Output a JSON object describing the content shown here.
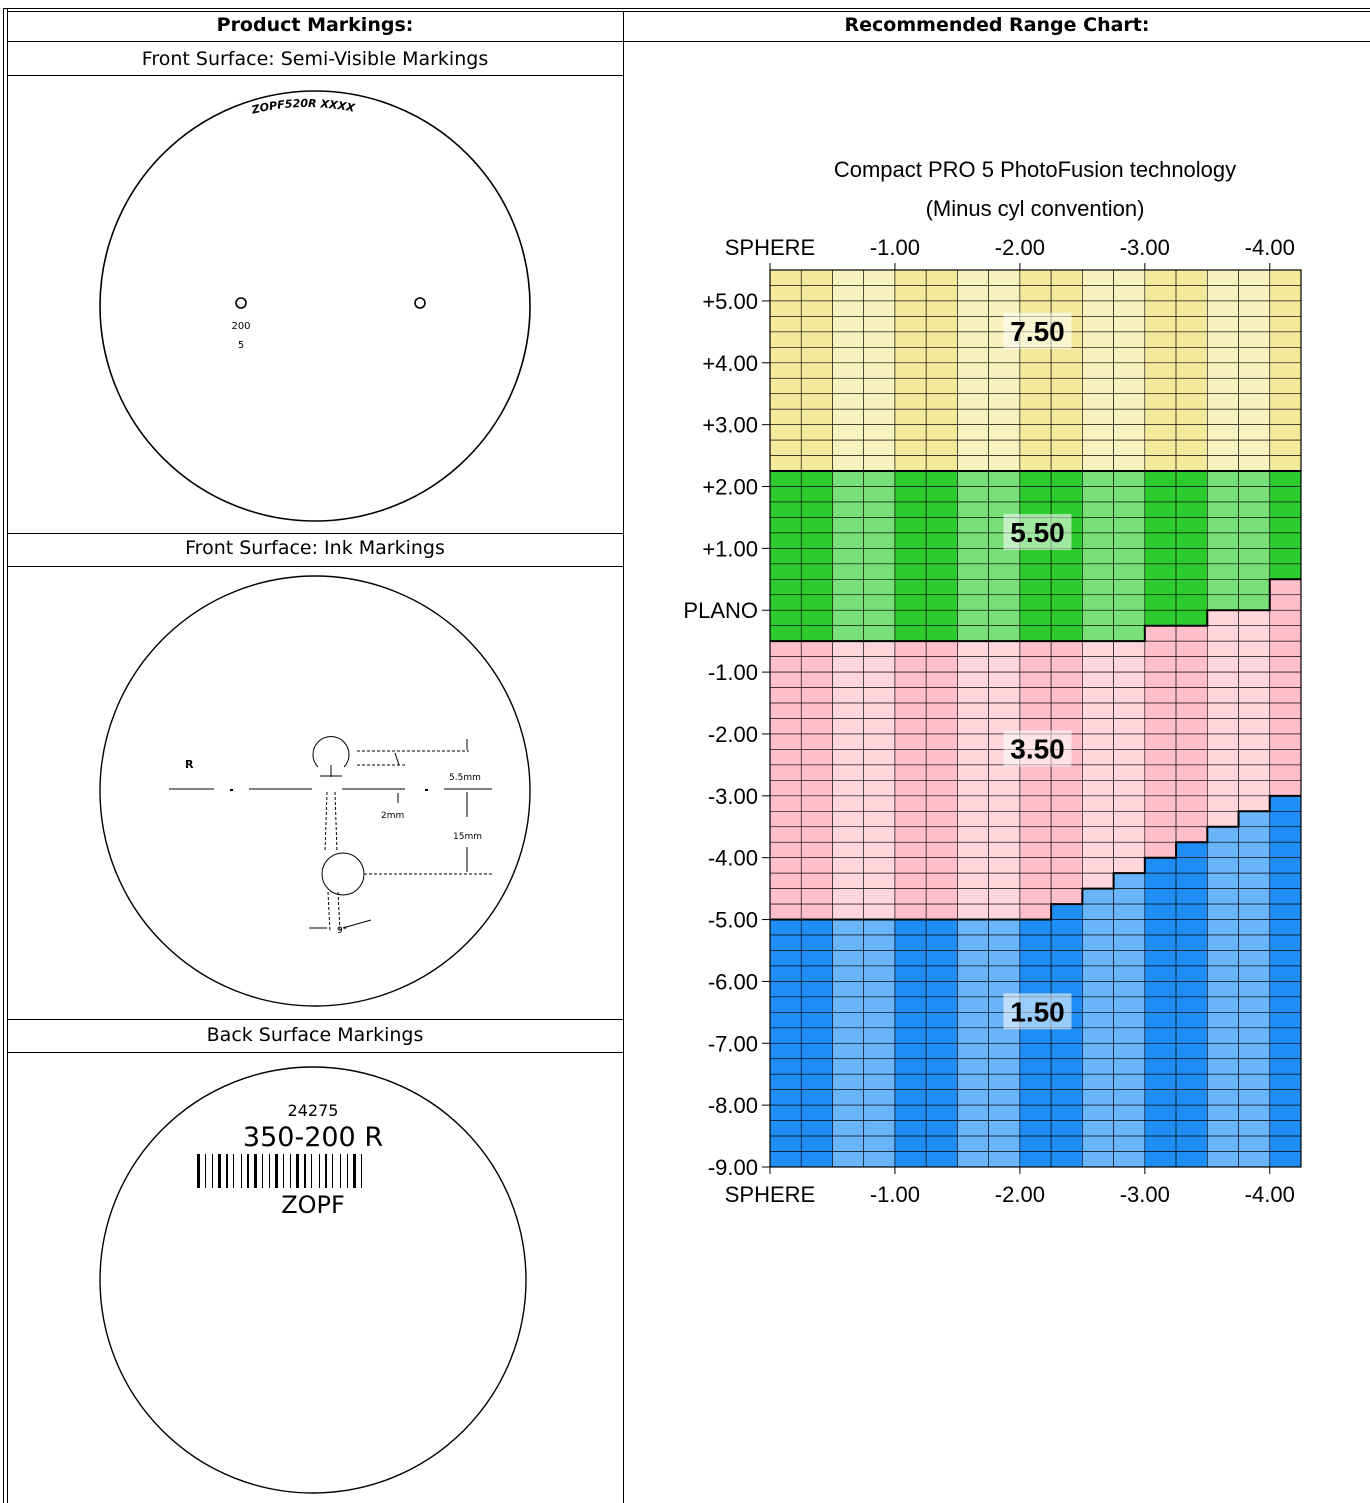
{
  "headers": {
    "left": "Product Markings:",
    "right": "Recommended Range Chart:"
  },
  "sections": {
    "front_semi": "Front Surface:  Semi-Visible Markings",
    "front_ink": "Front Surface: Ink Markings",
    "back": "Back Surface Markings"
  },
  "semi_visible": {
    "engraving": "ZOPF520R XXXX",
    "add_power": "200",
    "code": "5"
  },
  "ink": {
    "side_label": "R",
    "dim_top": "5.5mm",
    "dim_small": "2mm",
    "dim_big": "15mm",
    "angle": "9°"
  },
  "back_markings": {
    "code_number": "24275",
    "code_line": "350-200 R",
    "brand": "ZOPF"
  },
  "chart_data": {
    "type": "heatmap",
    "title": "Compact PRO 5 PhotoFusion technology",
    "subtitle": "(Minus cyl convention)",
    "x_tick_labels": [
      "SPHERE",
      "-1.00",
      "-2.00",
      "-3.00",
      "-4.00"
    ],
    "y_tick_labels": [
      "+5.00",
      "+4.00",
      "+3.00",
      "+2.00",
      "+1.00",
      "PLANO",
      "-1.00",
      "-2.00",
      "-3.00",
      "-4.00",
      "-5.00",
      "-6.00",
      "-7.00",
      "-8.00",
      "-9.00"
    ],
    "x_axis": "cylinder",
    "y_axis": "sphere",
    "xlim": [
      0.25,
      -4.0
    ],
    "ylim": [
      5.25,
      -9.25
    ],
    "cell_step": 0.25,
    "zones": [
      {
        "label": "7.50",
        "color": "#f3ea9c",
        "color_alt": "#f8f2be",
        "line": "#000000",
        "sphere_from": 5.25,
        "sphere_to": 2.0
      },
      {
        "label": "5.50",
        "color": "#2dcb2d",
        "color_alt": "#79e079",
        "sphere_from": 2.0,
        "sphere_to_by_cyl": [
          [
            0.0,
            -2.75,
            -0.75
          ],
          [
            -3.0,
            -3.25,
            -0.5
          ],
          [
            -3.5,
            -3.75,
            -0.25
          ],
          [
            -4.0,
            -4.0,
            0.25
          ]
        ]
      },
      {
        "label": "3.50",
        "color": "#ffc0cb",
        "color_alt": "#ffd6dc",
        "sphere_to_by_cyl": [
          [
            0.0,
            -2.0,
            -5.25
          ],
          [
            -2.25,
            -2.25,
            -5.0
          ],
          [
            -2.5,
            -2.5,
            -4.75
          ],
          [
            -2.75,
            -2.75,
            -4.5
          ],
          [
            -3.0,
            -3.0,
            -4.25
          ],
          [
            -3.25,
            -3.25,
            -4.0
          ],
          [
            -3.5,
            -3.5,
            -3.75
          ],
          [
            -3.75,
            -3.75,
            -3.5
          ],
          [
            -4.0,
            -4.0,
            -3.25
          ]
        ]
      },
      {
        "label": "1.50",
        "color": "#1e8ef5",
        "color_alt": "#6ab4f9",
        "sphere_to": -9.25
      }
    ]
  }
}
